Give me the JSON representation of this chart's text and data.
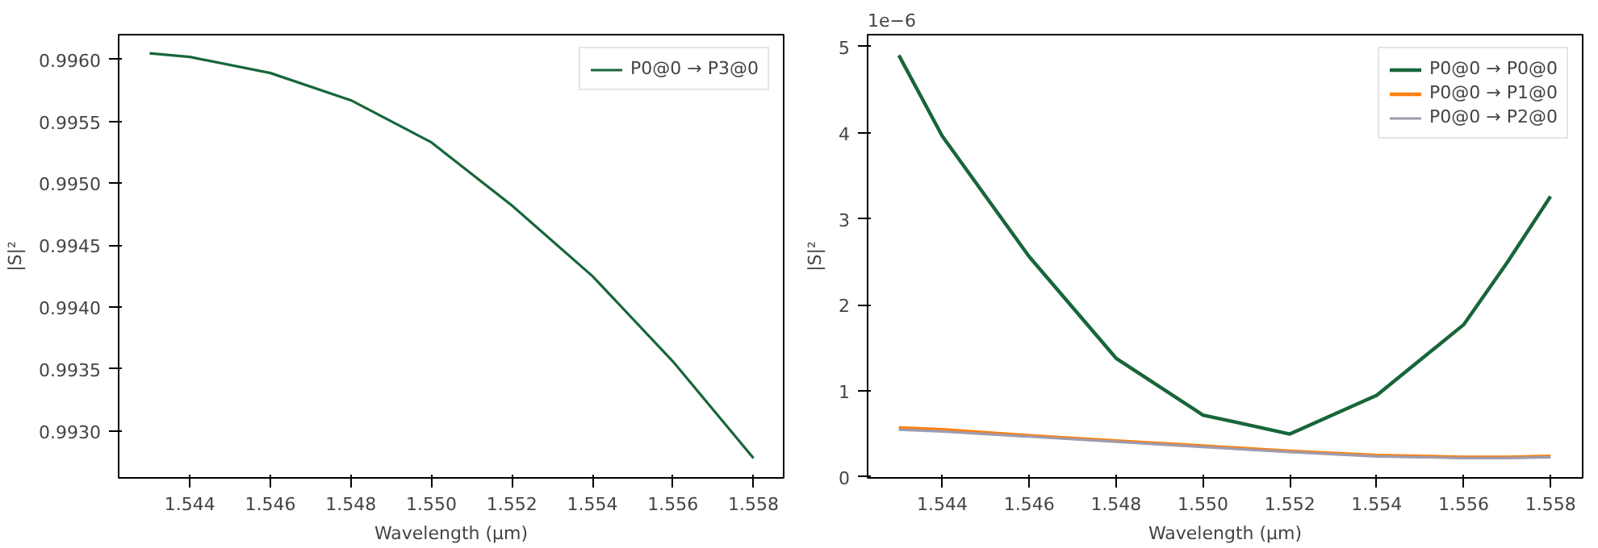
{
  "chart_data": [
    {
      "type": "line",
      "xlabel": "Wavelength (µm)",
      "ylabel": "|S|²",
      "legend": "top right",
      "grid": false,
      "x": [
        1.543,
        1.544,
        1.546,
        1.548,
        1.55,
        1.552,
        1.554,
        1.556,
        1.558
      ],
      "series": [
        {
          "name": "P0@0 → P3@0",
          "color": "#17663a",
          "values": [
            0.99605,
            0.99602,
            0.99589,
            0.99567,
            0.99533,
            0.99482,
            0.99425,
            0.99356,
            0.99278
          ]
        }
      ],
      "xlim": [
        1.54223,
        1.55875
      ],
      "ylim": [
        0.99262,
        0.9962
      ],
      "xticks": [
        1.544,
        1.546,
        1.548,
        {
          "value": 1.55,
          "label": "1.550"
        },
        1.552,
        1.554,
        1.556,
        1.558
      ],
      "yticks": [
        {
          "value": 0.993,
          "label": "0.9930"
        },
        {
          "value": 0.9935,
          "label": "0.9935"
        },
        {
          "value": 0.994,
          "label": "0.9940"
        },
        {
          "value": 0.9945,
          "label": "0.9945"
        },
        {
          "value": 0.995,
          "label": "0.9950"
        },
        {
          "value": 0.9955,
          "label": "0.9955"
        },
        {
          "value": 0.996,
          "label": "0.9960"
        }
      ]
    },
    {
      "type": "line",
      "xlabel": "Wavelength (µm)",
      "ylabel": "|S|²",
      "legend": "top right",
      "grid": false,
      "annotations": [
        "1e−6"
      ],
      "x": [
        1.543,
        1.544,
        1.546,
        1.548,
        1.55,
        1.552,
        1.554,
        1.556,
        1.557,
        1.558
      ],
      "series": [
        {
          "name": "P0@0 → P0@0",
          "color": "#17663a",
          "values": [
            4.9,
            3.96,
            2.56,
            1.38,
            0.72,
            0.5,
            0.95,
            1.77,
            2.49,
            3.26
          ]
        },
        {
          "name": "P0@0 → P1@0",
          "color": "#ff7f0e",
          "values": [
            0.57,
            0.55,
            0.48,
            0.42,
            0.36,
            0.3,
            0.25,
            0.23,
            0.23,
            0.24
          ]
        },
        {
          "name": "P0@0 → P2@0",
          "color": "#9c9cb0",
          "values": [
            0.55,
            0.53,
            0.47,
            0.41,
            0.35,
            0.29,
            0.24,
            0.22,
            0.22,
            0.23
          ]
        }
      ],
      "xlim": [
        1.54228,
        1.55874
      ],
      "ylim": [
        -0.01,
        5.14
      ],
      "xticks": [
        1.544,
        1.546,
        1.548,
        {
          "value": 1.55,
          "label": "1.550"
        },
        1.552,
        1.554,
        1.556,
        1.558
      ],
      "yticks": [
        0,
        1,
        2,
        3,
        4,
        5
      ]
    }
  ]
}
